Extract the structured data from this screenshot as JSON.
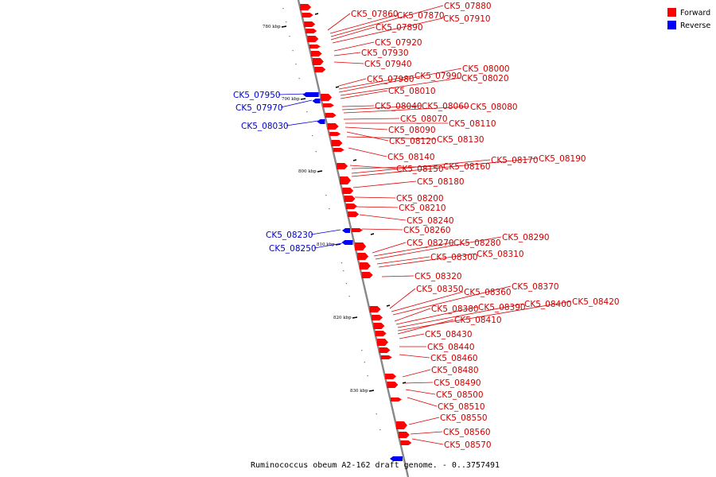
{
  "caption": "Ruminococcus obeum A2-162 draft genome. - 0..3757491",
  "legend": {
    "items": [
      {
        "label": "Forward",
        "color": "#ff0000"
      },
      {
        "label": "Reverse",
        "color": "#0000ff"
      }
    ]
  },
  "colors": {
    "forward": "#ff0000",
    "reverse": "#0000ff",
    "backbone": "#888888"
  },
  "axis_labels": [
    "780 kbp",
    "790 kbp",
    "800 kbp",
    "810 kbp",
    "820 kbp",
    "830 kbp"
  ],
  "forward_genes": [
    "CK5_07860",
    "CK5_07870",
    "CK5_07880",
    "CK5_07890",
    "CK5_07910",
    "CK5_07920",
    "CK5_07930",
    "CK5_07940",
    "CK5_07980",
    "CK5_07990",
    "CK5_08000",
    "CK5_08020",
    "CK5_08010",
    "CK5_08040",
    "CK5_08060",
    "CK5_08080",
    "CK5_08070",
    "CK5_08110",
    "CK5_08090",
    "CK5_08120",
    "CK5_08130",
    "CK5_08140",
    "CK5_08150",
    "CK5_08160",
    "CK5_08170",
    "CK5_08190",
    "CK5_08180",
    "CK5_08200",
    "CK5_08210",
    "CK5_08240",
    "CK5_08260",
    "CK5_08270",
    "CK5_08280",
    "CK5_08290",
    "CK5_08300",
    "CK5_08310",
    "CK5_08320",
    "CK5_08350",
    "CK5_08360",
    "CK5_08370",
    "CK5_08380",
    "CK5_08390",
    "CK5_08400",
    "CK5_08420",
    "CK5_08410",
    "CK5_08430",
    "CK5_08440",
    "CK5_08460",
    "CK5_08480",
    "CK5_08490",
    "CK5_08500",
    "CK5_08510",
    "CK5_08550",
    "CK5_08560",
    "CK5_08570"
  ],
  "reverse_genes": [
    "CK5_07950",
    "CK5_07970",
    "CK5_08030",
    "CK5_08230",
    "CK5_08250"
  ]
}
